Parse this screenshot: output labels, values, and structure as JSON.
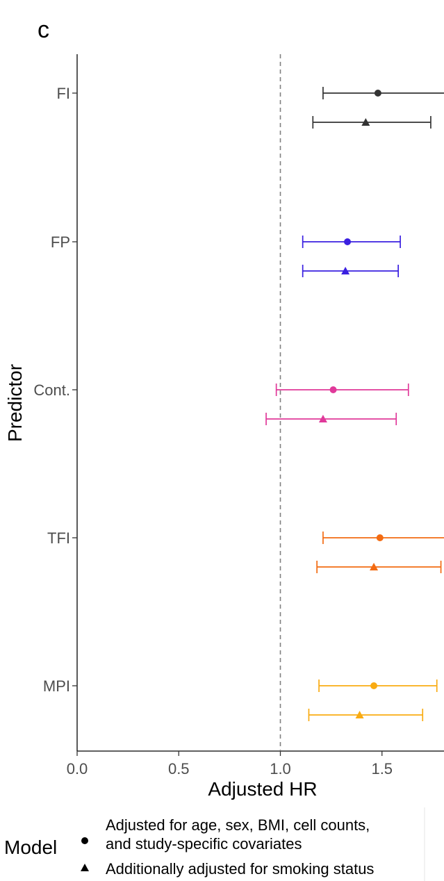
{
  "panel_label": "c",
  "chart_data": {
    "type": "scatter",
    "subtype": "forest-plot",
    "title": "",
    "xlabel": "Adjusted HR",
    "ylabel": "Predictor",
    "xlim": [
      0,
      1.8
    ],
    "x_ticks": [
      {
        "value": 0.0,
        "label": "0.0"
      },
      {
        "value": 0.5,
        "label": "0.5"
      },
      {
        "value": 1.0,
        "label": "1.0"
      },
      {
        "value": 1.5,
        "label": "1.5"
      }
    ],
    "reference_line": {
      "x": 1.0,
      "style": "dashed",
      "color": "#808080"
    },
    "grid": false,
    "categories": [
      "FI",
      "FP",
      "Cont.",
      "TFI",
      "MPI"
    ],
    "colors": [
      "#333333",
      "#3a1fe0",
      "#e0399a",
      "#f36b12",
      "#f9ab12"
    ],
    "series": [
      {
        "shape": "circle",
        "points": [
          {
            "predictor": "FI",
            "hr": 1.48,
            "lower": 1.21,
            "upper": 1.86
          },
          {
            "predictor": "FP",
            "hr": 1.33,
            "lower": 1.11,
            "upper": 1.59
          },
          {
            "predictor": "Cont.",
            "hr": 1.26,
            "lower": 0.98,
            "upper": 1.63
          },
          {
            "predictor": "TFI",
            "hr": 1.49,
            "lower": 1.21,
            "upper": 1.85
          },
          {
            "predictor": "MPI",
            "hr": 1.46,
            "lower": 1.19,
            "upper": 1.77
          }
        ]
      },
      {
        "shape": "triangle",
        "points": [
          {
            "predictor": "FI",
            "hr": 1.42,
            "lower": 1.16,
            "upper": 1.74
          },
          {
            "predictor": "FP",
            "hr": 1.32,
            "lower": 1.11,
            "upper": 1.58
          },
          {
            "predictor": "Cont.",
            "hr": 1.21,
            "lower": 0.93,
            "upper": 1.57
          },
          {
            "predictor": "TFI",
            "hr": 1.46,
            "lower": 1.18,
            "upper": 1.79
          },
          {
            "predictor": "MPI",
            "hr": 1.39,
            "lower": 1.14,
            "upper": 1.7
          }
        ]
      }
    ],
    "legend": {
      "title": "Model",
      "placement": "bottom",
      "entries": [
        {
          "shape": "circle",
          "lines": [
            "Adjusted for age, sex, BMI, cell counts,",
            "and study-specific covariates"
          ]
        },
        {
          "shape": "triangle",
          "lines": [
            "Additionally adjusted for smoking status"
          ]
        }
      ]
    }
  }
}
